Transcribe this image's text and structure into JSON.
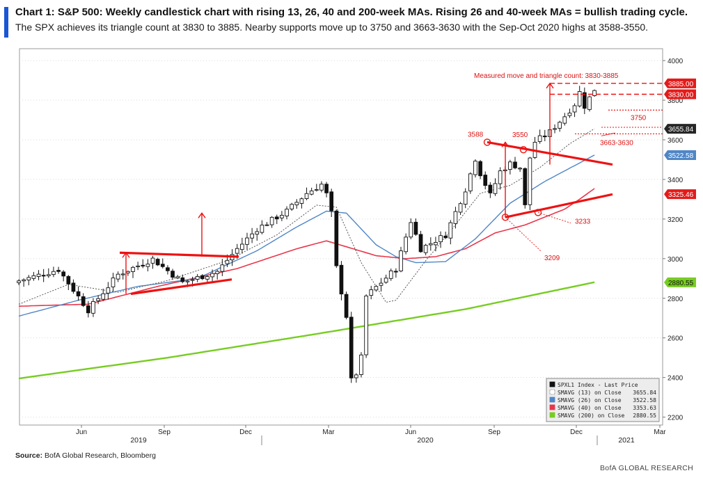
{
  "title": "Chart 1: S&P 500: Weekly candlestick chart with rising 13, 26, 40 and 200-week MAs. Rising 26 and 40-week MAs = bullish trading cycle.",
  "subtitle": "The SPX achieves its triangle count at 3830 to 3885. Nearby supports move up to 3750 and 3663-3630 with the Sep-Oct 2020 highs at 3588-3550.",
  "source_label": "Source:",
  "source_text": "BofA Global Research, Bloomberg",
  "brand": "BofA GLOBAL RESEARCH",
  "colors": {
    "candle": "#111111",
    "sma13": "#555555",
    "sma26": "#4f86c6",
    "sma40": "#e8364a",
    "sma200": "#77cc22",
    "trendline": "#ee1111",
    "annotation": "#dd1111",
    "grid": "#d9d9d9"
  },
  "chart_data": {
    "type": "candlestick",
    "yaxis_position": "right",
    "ylim": [
      2160,
      4060
    ],
    "yticks": [
      2200,
      2400,
      2600,
      2800,
      3000,
      3200,
      3400,
      3600,
      3800,
      4000
    ],
    "grid": true,
    "x_months": [
      "Jun",
      "Sep",
      "Dec",
      "Mar",
      "Jun",
      "Sep",
      "Dec",
      "Mar"
    ],
    "x_years": [
      "2019",
      "2020",
      "2021"
    ],
    "legend": {
      "position": "bottom-right",
      "entries": [
        {
          "label": "SPXL1 Index - Last Price",
          "value": "",
          "style": "candle"
        },
        {
          "label": "SMAVG (13)  on Close",
          "value": "3655.84",
          "style": "sma13"
        },
        {
          "label": "SMAVG (26)  on Close",
          "value": "3522.58",
          "style": "sma26"
        },
        {
          "label": "SMAVG (40)  on Close",
          "value": "3353.63",
          "style": "sma40"
        },
        {
          "label": "SMAVG (200)  on Close",
          "value": "2880.55",
          "style": "sma200"
        }
      ]
    },
    "price_tags": [
      {
        "label": "3885.00",
        "value": 3885,
        "kind": "red"
      },
      {
        "label": "3830.00",
        "value": 3830,
        "kind": "red"
      },
      {
        "label": "3655.84",
        "value": 3655.84,
        "kind": "dark"
      },
      {
        "label": "3522.58",
        "value": 3522.58,
        "kind": "blue"
      },
      {
        "label": "3325.46",
        "value": 3325.46,
        "kind": "red"
      },
      {
        "label": "2880.55",
        "value": 2880.55,
        "kind": "green"
      }
    ],
    "annotations": {
      "measured_move": "Measured move and triangle count: 3830-3885",
      "a3750": "3750",
      "a3663": "3663-3630",
      "a3588": "3588",
      "a3550": "3550",
      "a3233": "3233",
      "a3209": "3209"
    },
    "anchors": [
      {
        "week": 0,
        "value": 2888
      },
      {
        "week": 8,
        "value": 2945
      },
      {
        "week": 14,
        "value": 2740
      },
      {
        "week": 20,
        "value": 2920
      },
      {
        "week": 27,
        "value": 2998
      },
      {
        "week": 33,
        "value": 2880
      },
      {
        "week": 40,
        "value": 2935
      },
      {
        "week": 44,
        "value": 3050
      },
      {
        "week": 48,
        "value": 3150
      },
      {
        "week": 54,
        "value": 3240
      },
      {
        "week": 58,
        "value": 3330
      },
      {
        "week": 61,
        "value": 3375
      },
      {
        "week": 62,
        "value": 3325
      },
      {
        "week": 63,
        "value": 3230
      },
      {
        "week": 64,
        "value": 2955
      },
      {
        "week": 66,
        "value": 2710
      },
      {
        "week": 67,
        "value": 2385
      },
      {
        "week": 68,
        "value": 2420
      },
      {
        "week": 69,
        "value": 2500
      },
      {
        "week": 70,
        "value": 2810
      },
      {
        "week": 73,
        "value": 2880
      },
      {
        "week": 76,
        "value": 2950
      },
      {
        "week": 79,
        "value": 3190
      },
      {
        "week": 81,
        "value": 3050
      },
      {
        "week": 86,
        "value": 3120
      },
      {
        "week": 90,
        "value": 3350
      },
      {
        "week": 92,
        "value": 3505
      },
      {
        "week": 93,
        "value": 3430
      },
      {
        "week": 95,
        "value": 3320
      },
      {
        "week": 97,
        "value": 3440
      },
      {
        "week": 99,
        "value": 3480
      },
      {
        "week": 101,
        "value": 3460
      },
      {
        "week": 102,
        "value": 3265
      },
      {
        "week": 103,
        "value": 3510
      },
      {
        "week": 104,
        "value": 3590
      },
      {
        "week": 107,
        "value": 3640
      },
      {
        "week": 110,
        "value": 3720
      },
      {
        "week": 112,
        "value": 3780
      },
      {
        "week": 113,
        "value": 3840
      },
      {
        "week": 114,
        "value": 3770
      },
      {
        "week": 116,
        "value": 3855
      }
    ],
    "sma13": [
      {
        "week": 0,
        "value": 2770
      },
      {
        "week": 10,
        "value": 2870
      },
      {
        "week": 20,
        "value": 2830
      },
      {
        "week": 30,
        "value": 2890
      },
      {
        "week": 42,
        "value": 2990
      },
      {
        "week": 52,
        "value": 3120
      },
      {
        "week": 60,
        "value": 3270
      },
      {
        "week": 64,
        "value": 3260
      },
      {
        "week": 69,
        "value": 2980
      },
      {
        "week": 74,
        "value": 2780
      },
      {
        "week": 76,
        "value": 2790
      },
      {
        "week": 82,
        "value": 2990
      },
      {
        "week": 87,
        "value": 3140
      },
      {
        "week": 93,
        "value": 3330
      },
      {
        "week": 99,
        "value": 3370
      },
      {
        "week": 105,
        "value": 3460
      },
      {
        "week": 111,
        "value": 3580
      },
      {
        "week": 116,
        "value": 3656
      }
    ],
    "sma26": [
      {
        "week": 0,
        "value": 2710
      },
      {
        "week": 12,
        "value": 2790
      },
      {
        "week": 24,
        "value": 2860
      },
      {
        "week": 36,
        "value": 2900
      },
      {
        "week": 48,
        "value": 3040
      },
      {
        "week": 56,
        "value": 3160
      },
      {
        "week": 62,
        "value": 3240
      },
      {
        "week": 66,
        "value": 3230
      },
      {
        "week": 72,
        "value": 3070
      },
      {
        "week": 76,
        "value": 3010
      },
      {
        "week": 80,
        "value": 2980
      },
      {
        "week": 86,
        "value": 2985
      },
      {
        "week": 92,
        "value": 3100
      },
      {
        "week": 99,
        "value": 3280
      },
      {
        "week": 106,
        "value": 3390
      },
      {
        "week": 116,
        "value": 3523
      }
    ],
    "sma40": [
      {
        "week": 0,
        "value": 2760
      },
      {
        "week": 14,
        "value": 2770
      },
      {
        "week": 28,
        "value": 2860
      },
      {
        "week": 44,
        "value": 2950
      },
      {
        "week": 56,
        "value": 3050
      },
      {
        "week": 62,
        "value": 3090
      },
      {
        "week": 66,
        "value": 3060
      },
      {
        "week": 72,
        "value": 3015
      },
      {
        "week": 78,
        "value": 3000
      },
      {
        "week": 84,
        "value": 3010
      },
      {
        "week": 90,
        "value": 3050
      },
      {
        "week": 96,
        "value": 3130
      },
      {
        "week": 102,
        "value": 3170
      },
      {
        "week": 106,
        "value": 3210
      },
      {
        "week": 110,
        "value": 3250
      },
      {
        "week": 113,
        "value": 3300
      },
      {
        "week": 116,
        "value": 3354
      }
    ],
    "sma200": [
      {
        "week": 0,
        "value": 2395
      },
      {
        "week": 30,
        "value": 2500
      },
      {
        "week": 60,
        "value": 2620
      },
      {
        "week": 90,
        "value": 2745
      },
      {
        "week": 116,
        "value": 2881
      }
    ]
  }
}
